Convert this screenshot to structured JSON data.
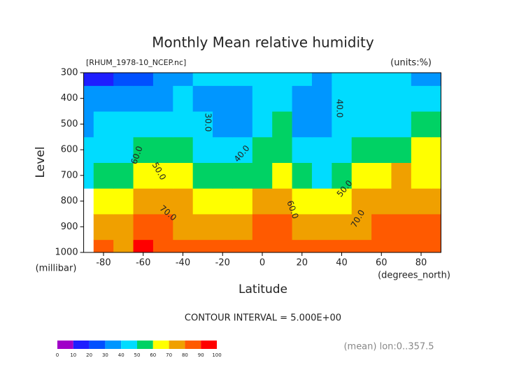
{
  "chart_data": {
    "type": "contour",
    "title": "Monthly Mean relative humidity",
    "subtitle": "[RHUM_1978-10_NCEP.nc]",
    "units": "(units:%)",
    "ylabel": "Level",
    "yunit": "(millibar)",
    "xlabel": "Latitude",
    "xunit": "(degrees_north)",
    "contour_interval": "CONTOUR INTERVAL = 5.000E+00",
    "footer": "(mean) lon:0..357.5",
    "x": [
      -90,
      -80,
      -70,
      -60,
      -50,
      -40,
      -30,
      -20,
      -10,
      0,
      10,
      20,
      30,
      40,
      50,
      60,
      70,
      80,
      90
    ],
    "levels": [
      1000,
      900,
      800,
      700,
      600,
      500,
      400,
      300
    ],
    "values": [
      [
        null,
        85,
        75,
        90,
        88,
        85,
        85,
        85,
        85,
        85,
        88,
        85,
        82,
        80,
        80,
        88,
        85,
        85,
        88
      ],
      [
        null,
        70,
        70,
        80,
        80,
        78,
        75,
        72,
        75,
        80,
        82,
        75,
        72,
        75,
        78,
        82,
        82,
        80,
        82
      ],
      [
        null,
        60,
        60,
        70,
        72,
        70,
        68,
        65,
        65,
        70,
        73,
        65,
        60,
        65,
        70,
        75,
        78,
        76,
        76
      ],
      [
        45,
        50,
        55,
        60,
        62,
        60,
        55,
        55,
        50,
        58,
        65,
        50,
        48,
        52,
        62,
        68,
        70,
        68,
        68
      ],
      [
        40,
        45,
        45,
        50,
        55,
        52,
        45,
        40,
        40,
        50,
        55,
        40,
        40,
        43,
        50,
        55,
        58,
        62,
        60
      ],
      [
        35,
        40,
        40,
        45,
        45,
        45,
        40,
        35,
        35,
        45,
        50,
        32,
        35,
        40,
        45,
        48,
        48,
        55,
        50
      ],
      [
        30,
        30,
        35,
        35,
        38,
        42,
        38,
        35,
        38,
        45,
        48,
        32,
        35,
        40,
        45,
        48,
        42,
        45,
        42
      ],
      [
        15,
        15,
        20,
        25,
        30,
        38,
        40,
        40,
        42,
        45,
        45,
        40,
        38,
        40,
        45,
        45,
        40,
        38,
        35
      ]
    ],
    "colors": [
      "#a000c8",
      "#1e1eff",
      "#0050ff",
      "#0096ff",
      "#00dcff",
      "#00d264",
      "#ffff00",
      "#f0a000",
      "#ff5a00",
      "#ff0000"
    ],
    "colorbar_ticks": [
      0,
      10,
      20,
      30,
      40,
      50,
      60,
      70,
      80,
      90,
      100
    ],
    "contour_labels": [
      "30.0",
      "40.0",
      "40.0",
      "50.0",
      "50.0",
      "60.0",
      "60.0",
      "70.0",
      "70.0"
    ],
    "xlim": [
      -90,
      90
    ],
    "xticks": [
      -80,
      -60,
      -40,
      -20,
      0,
      20,
      40,
      60,
      80
    ],
    "ylim": [
      1000,
      300
    ],
    "yticks": [
      1000,
      900,
      800,
      700,
      600,
      500,
      400,
      300
    ]
  }
}
